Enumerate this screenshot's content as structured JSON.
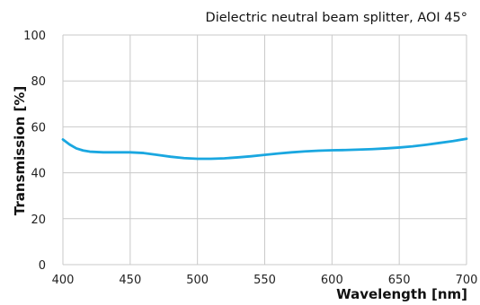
{
  "chart_data": {
    "type": "line",
    "title": "Dielectric neutral beam splitter, AOI 45°",
    "xlabel": "Wavelength [nm]",
    "ylabel": "Transmission [%]",
    "xlim": [
      400,
      700
    ],
    "ylim": [
      0,
      100
    ],
    "x_ticks": [
      "400",
      "450",
      "500",
      "550",
      "600",
      "650",
      "700"
    ],
    "y_ticks": [
      "0",
      "20",
      "40",
      "60",
      "80",
      "100"
    ],
    "grid": true,
    "series": [
      {
        "color": "#1aa7e0",
        "points": [
          [
            400,
            54.5
          ],
          [
            405,
            52.3
          ],
          [
            410,
            50.6
          ],
          [
            415,
            49.7
          ],
          [
            420,
            49.2
          ],
          [
            430,
            48.9
          ],
          [
            440,
            48.9
          ],
          [
            450,
            48.9
          ],
          [
            460,
            48.6
          ],
          [
            470,
            47.8
          ],
          [
            480,
            47.0
          ],
          [
            490,
            46.4
          ],
          [
            500,
            46.1
          ],
          [
            510,
            46.1
          ],
          [
            520,
            46.3
          ],
          [
            530,
            46.7
          ],
          [
            540,
            47.2
          ],
          [
            550,
            47.8
          ],
          [
            560,
            48.4
          ],
          [
            570,
            48.9
          ],
          [
            580,
            49.3
          ],
          [
            590,
            49.6
          ],
          [
            600,
            49.8
          ],
          [
            610,
            49.9
          ],
          [
            620,
            50.1
          ],
          [
            630,
            50.3
          ],
          [
            640,
            50.6
          ],
          [
            650,
            51.0
          ],
          [
            660,
            51.5
          ],
          [
            670,
            52.2
          ],
          [
            680,
            53.0
          ],
          [
            690,
            53.8
          ],
          [
            700,
            54.8
          ]
        ]
      }
    ]
  }
}
